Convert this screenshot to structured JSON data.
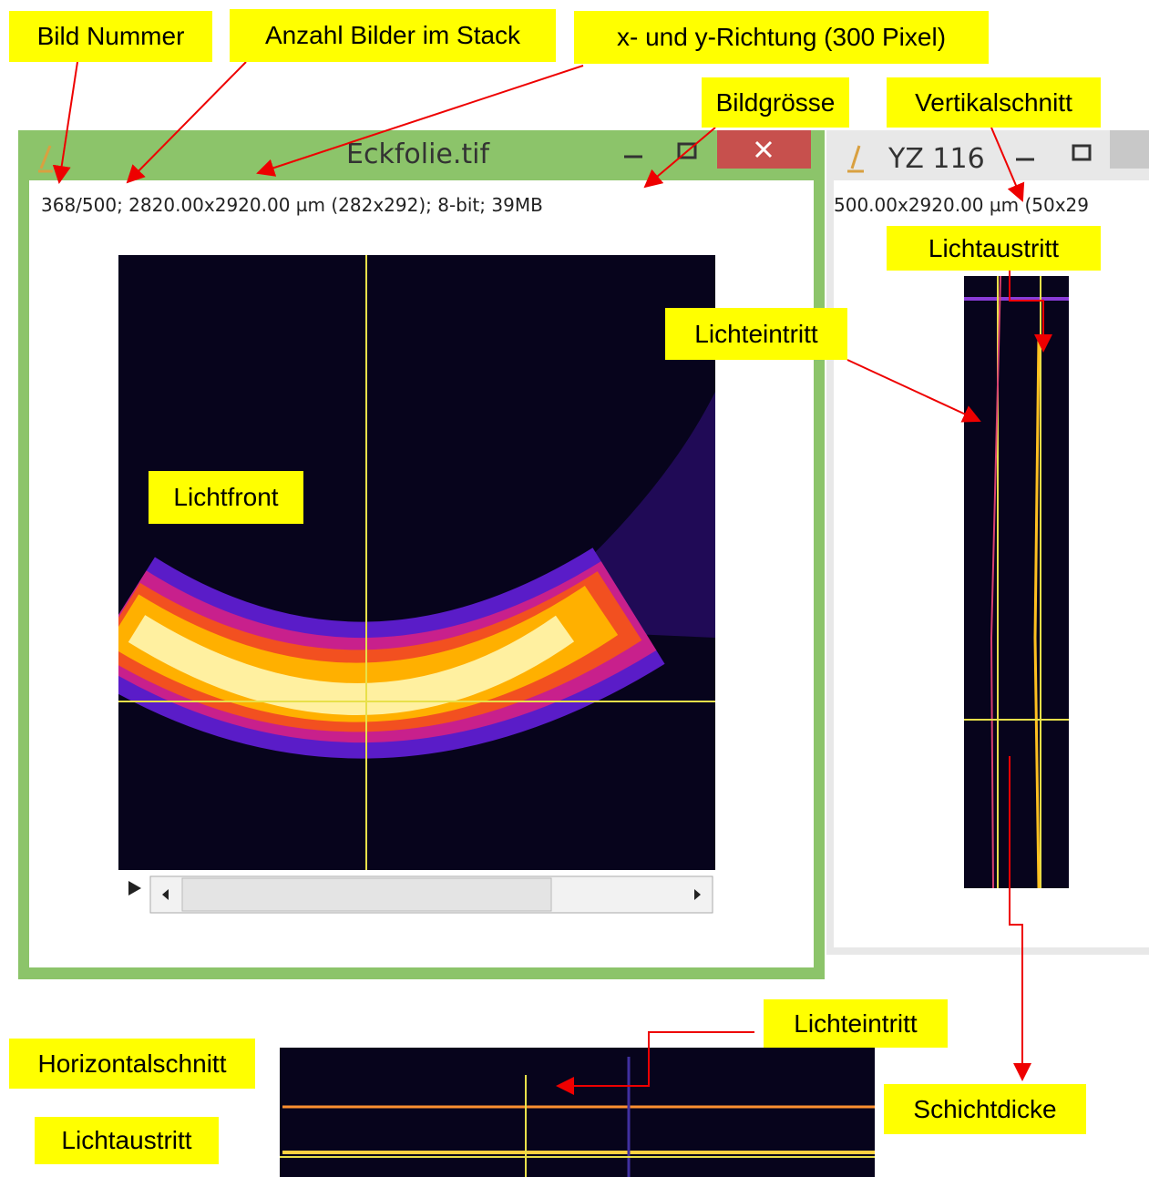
{
  "window_main": {
    "title": "Eckfolie.tif",
    "status": "368/500; 2820.00x2920.00 µm (282x292); 8-bit; 39MB"
  },
  "window_yz": {
    "title": "YZ 116",
    "status": "500.00x2920.00 µm (50x29"
  },
  "annotations": [
    "Bild Nummer",
    "Anzahl Bilder im Stack",
    "x- und y-Richtung (300 Pixel)",
    "Bildgrösse",
    "Vertikalschnitt",
    "Lichtaustritt",
    "Lichteintritt",
    "Lichtfront",
    "Lichteintritt",
    "Horizontalschnitt",
    "Lichtaustritt",
    "Schichtdicke"
  ]
}
